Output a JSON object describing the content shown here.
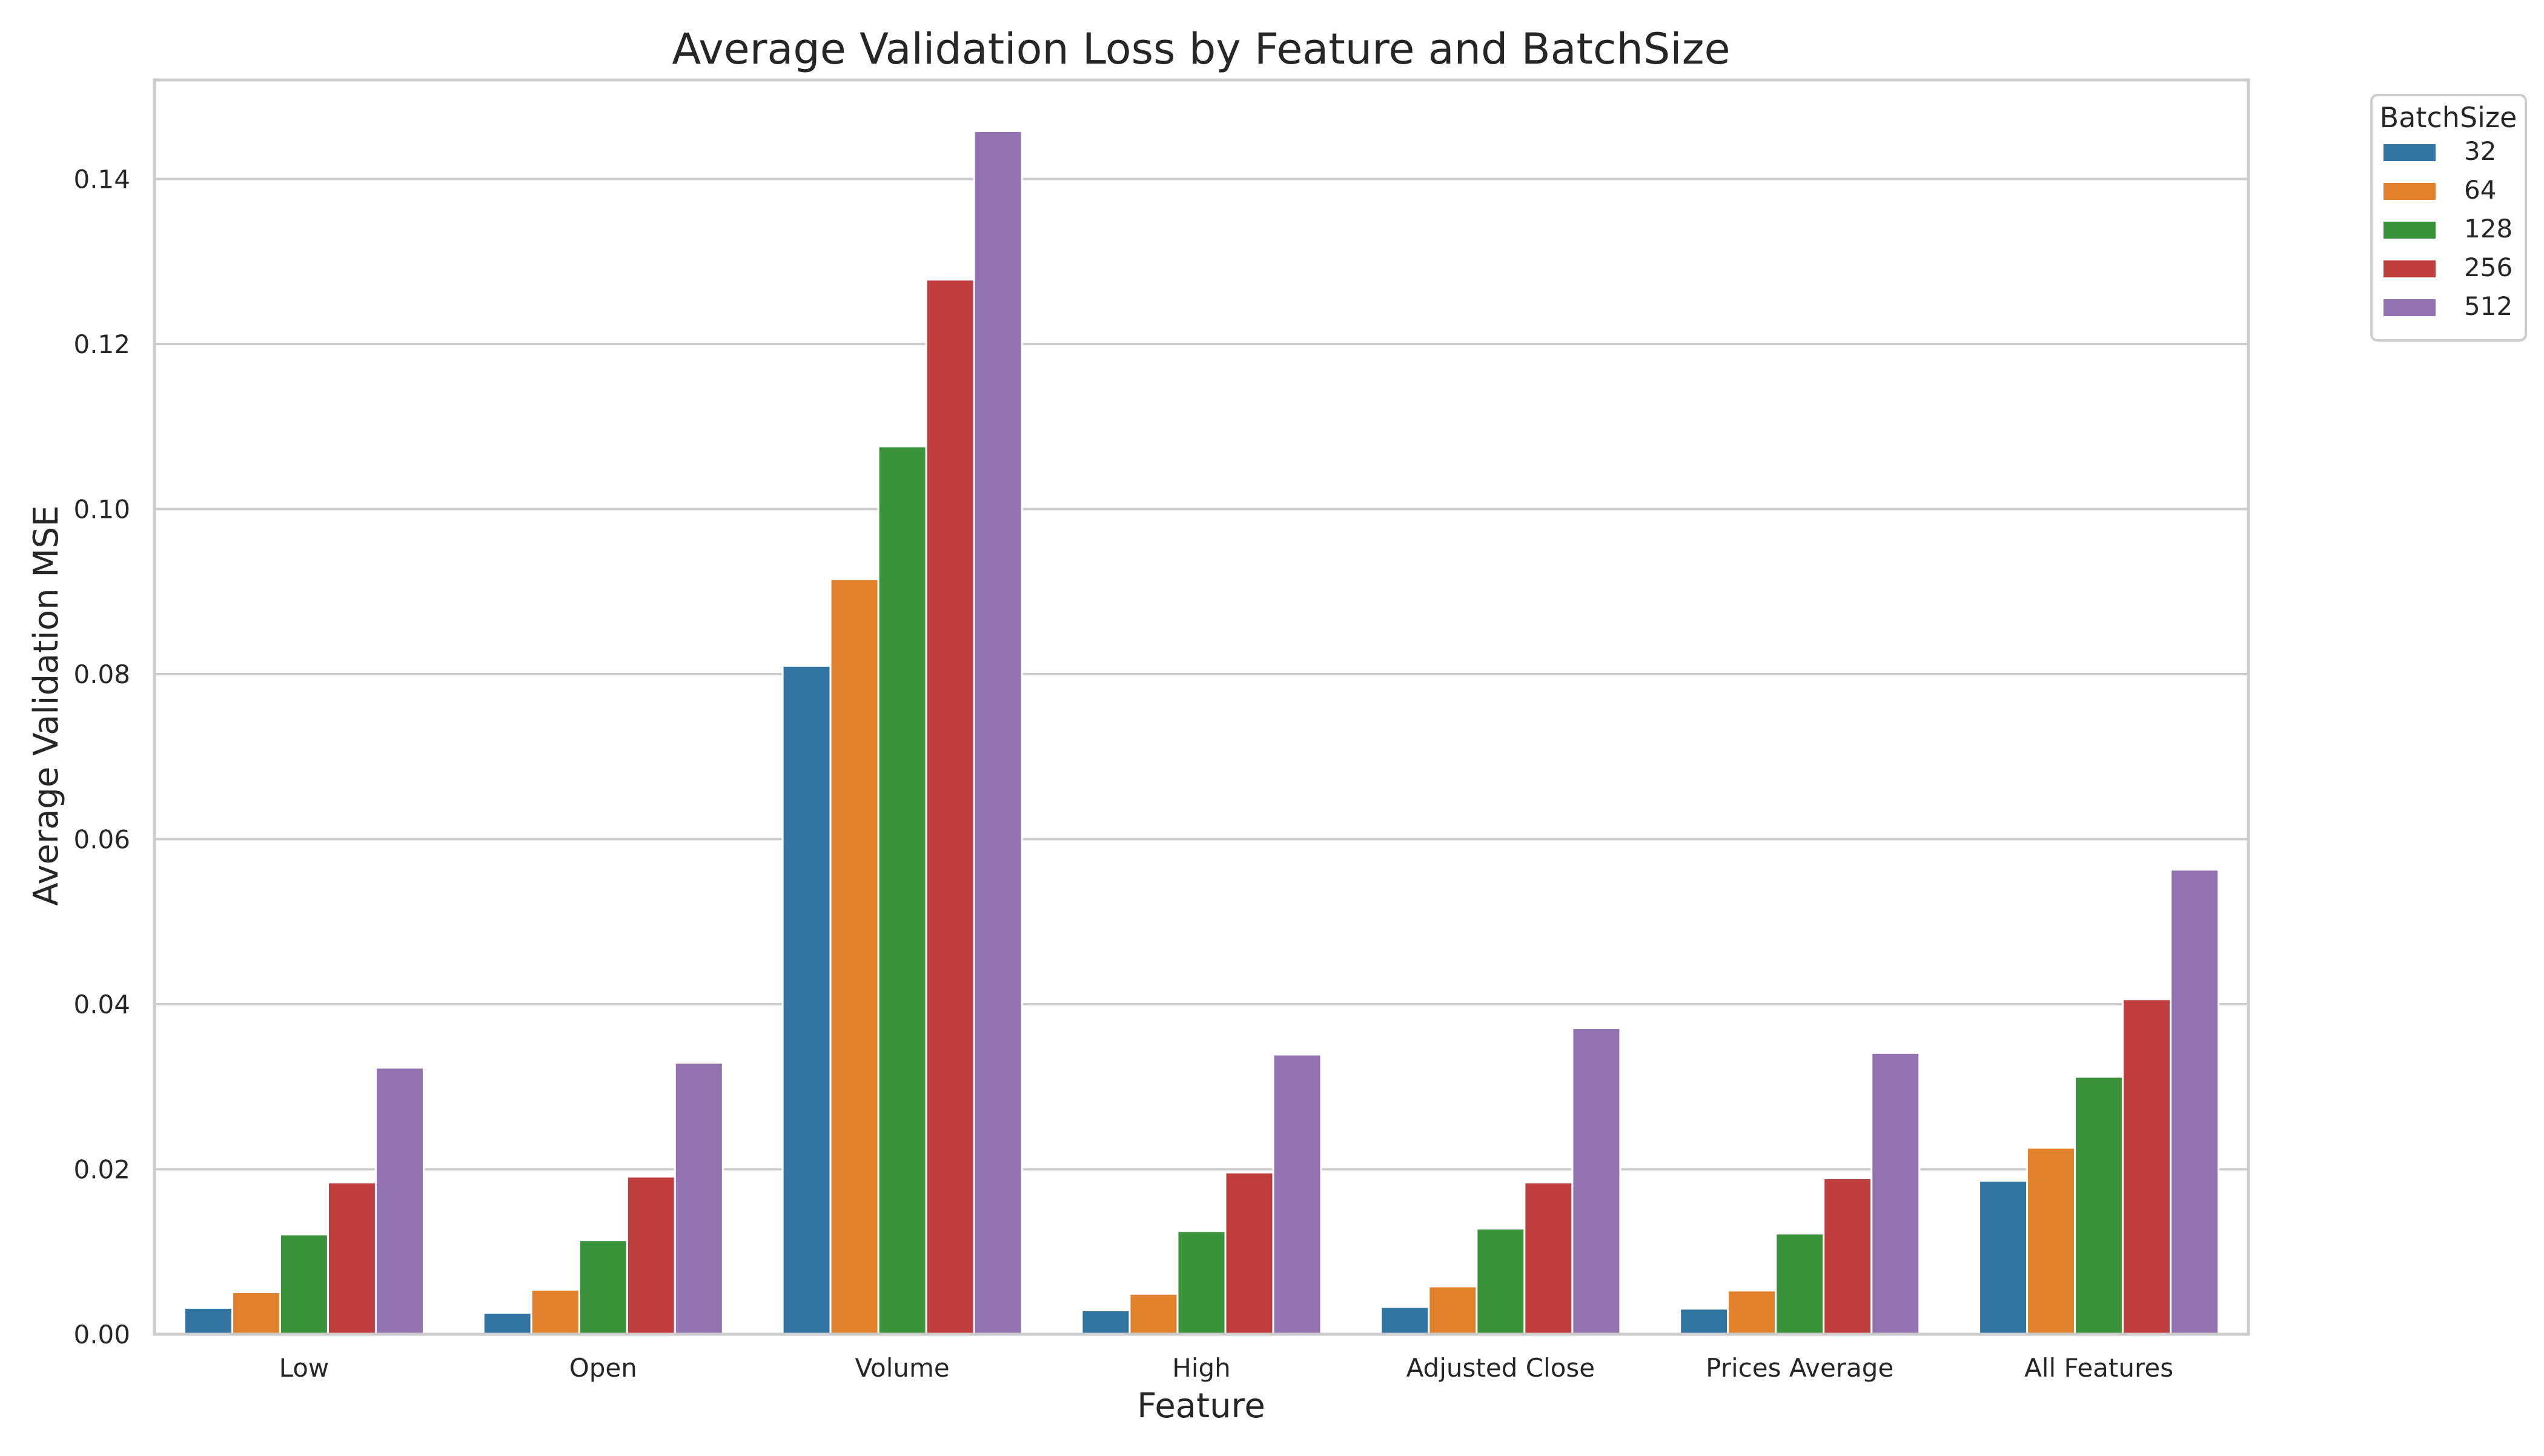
{
  "chart_data": {
    "type": "bar",
    "title": "Average Validation Loss by Feature and BatchSize",
    "xlabel": "Feature",
    "ylabel": "Average Validation MSE",
    "categories": [
      "Low",
      "Open",
      "Volume",
      "High",
      "Adjusted Close",
      "Prices Average",
      "All Features"
    ],
    "ylim": [
      0,
      0.152
    ],
    "yticks": [
      0.0,
      0.02,
      0.04,
      0.06,
      0.08,
      0.1,
      0.12,
      0.14
    ],
    "ytick_labels": [
      "0.00",
      "0.02",
      "0.04",
      "0.06",
      "0.08",
      "0.10",
      "0.12",
      "0.14"
    ],
    "grid": true,
    "legend": {
      "title": "BatchSize",
      "placement": "outside-top-right"
    },
    "series": [
      {
        "name": "32",
        "color": "#3274a1",
        "values": [
          0.0032,
          0.0026,
          0.081,
          0.0029,
          0.0033,
          0.0031,
          0.0186
        ]
      },
      {
        "name": "64",
        "color": "#e1812c",
        "values": [
          0.0051,
          0.0054,
          0.0915,
          0.0049,
          0.0058,
          0.0053,
          0.0226
        ]
      },
      {
        "name": "128",
        "color": "#3a923a",
        "values": [
          0.0121,
          0.0114,
          0.1076,
          0.0125,
          0.0128,
          0.0122,
          0.0312
        ]
      },
      {
        "name": "256",
        "color": "#c03d3e",
        "values": [
          0.0184,
          0.0191,
          0.1278,
          0.0196,
          0.0184,
          0.0189,
          0.0406
        ]
      },
      {
        "name": "512",
        "color": "#9372b2",
        "values": [
          0.0323,
          0.0329,
          0.1458,
          0.0339,
          0.0371,
          0.0341,
          0.0563
        ]
      }
    ]
  }
}
